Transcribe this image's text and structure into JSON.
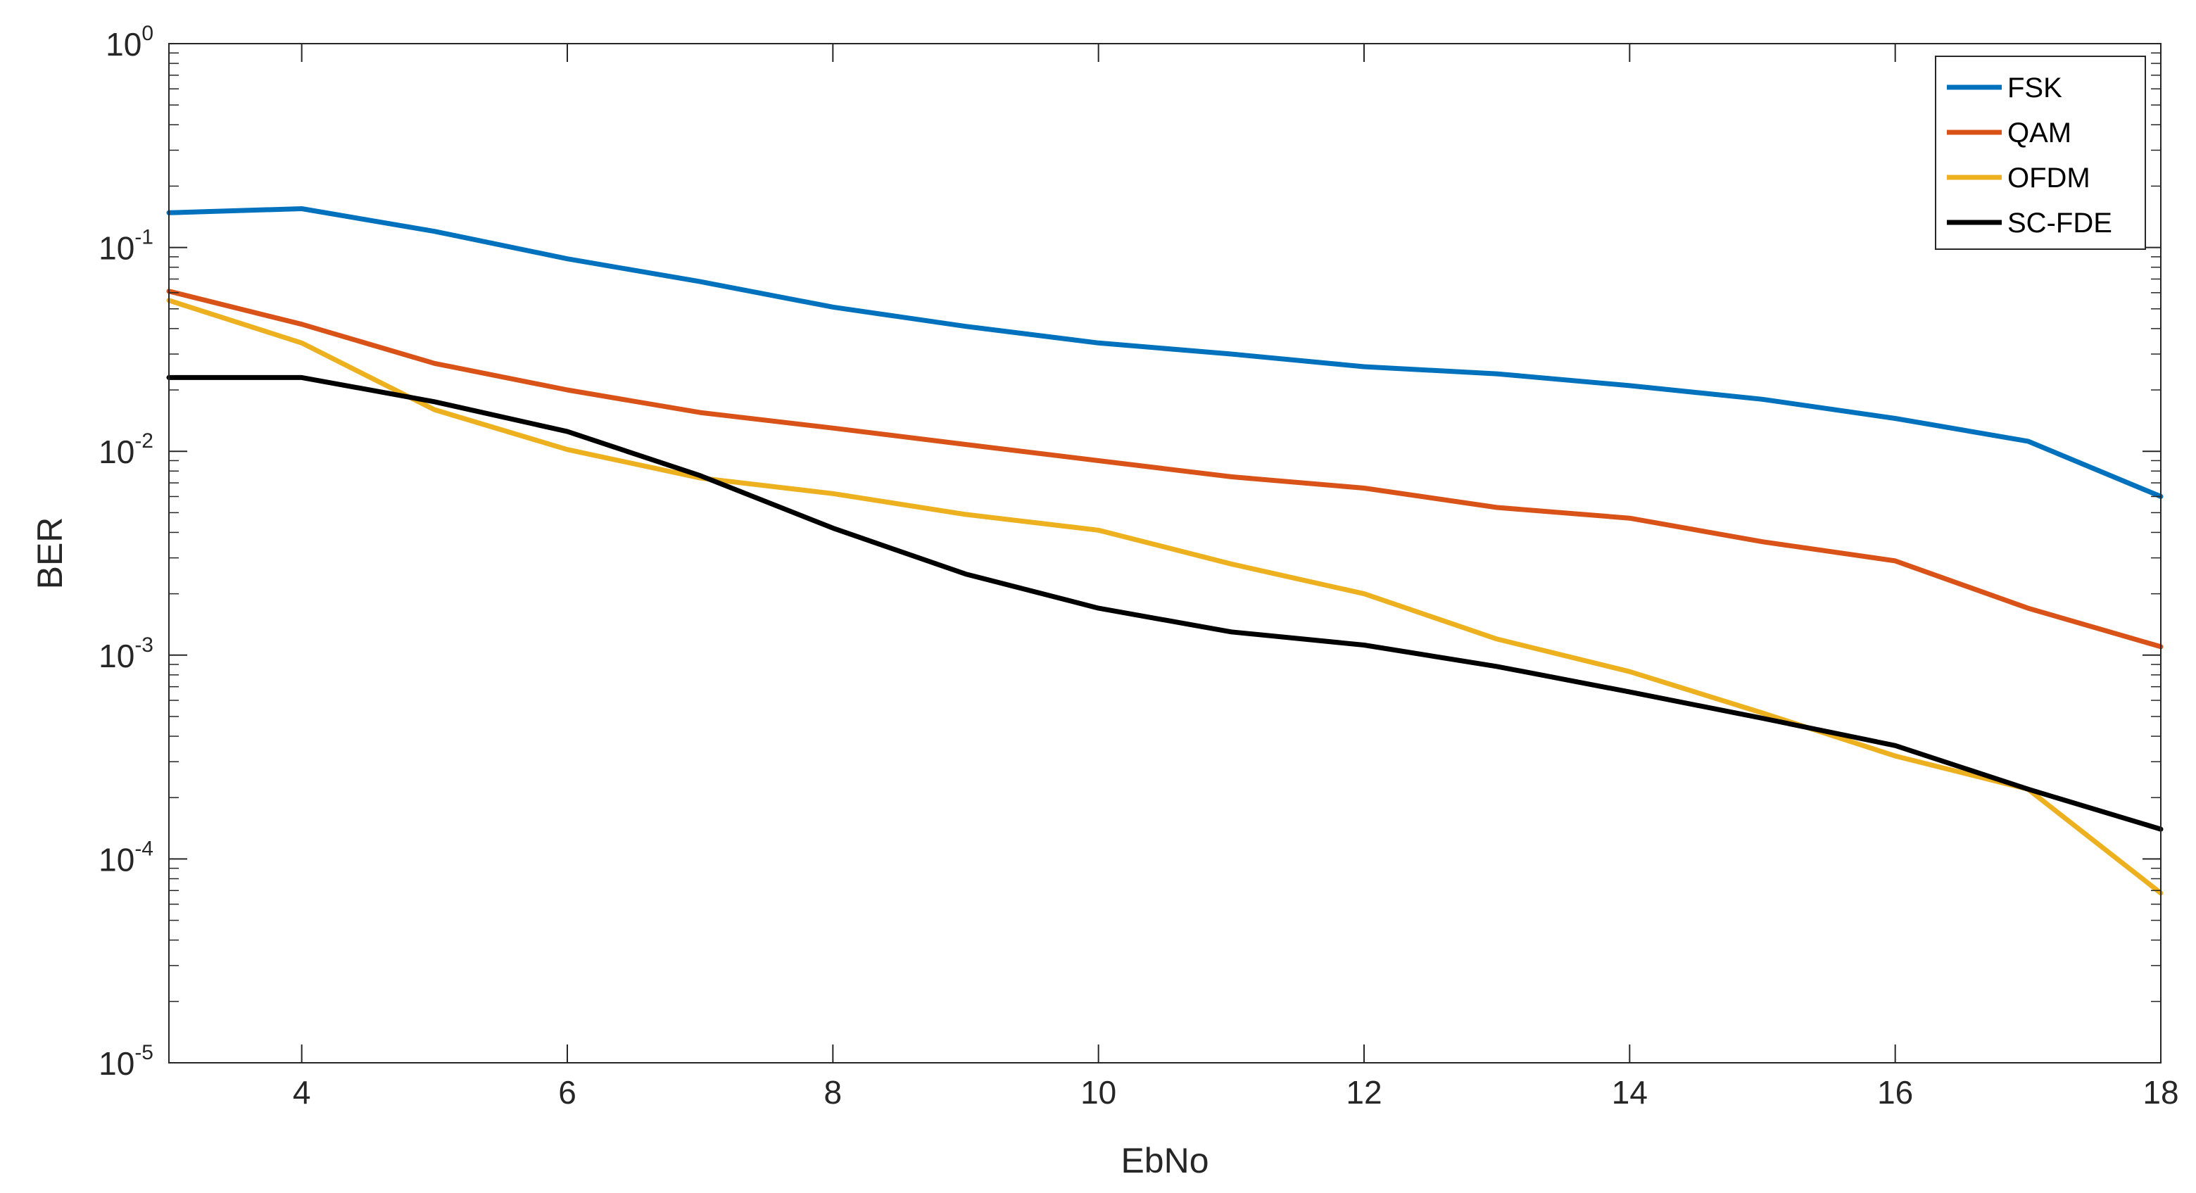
{
  "chart_data": {
    "type": "line",
    "title": "",
    "xlabel": "EbNo",
    "ylabel": "BER",
    "xlim": [
      3,
      18
    ],
    "ylim": [
      1e-05,
      1
    ],
    "yscale": "log",
    "grid": false,
    "legend": "top-right",
    "x_ticks": [
      4,
      6,
      8,
      10,
      12,
      14,
      16,
      18
    ],
    "y_ticks": [
      {
        "base": "10",
        "exp": "-5",
        "value": 1e-05
      },
      {
        "base": "10",
        "exp": "-4",
        "value": 0.0001
      },
      {
        "base": "10",
        "exp": "-3",
        "value": 0.001
      },
      {
        "base": "10",
        "exp": "-2",
        "value": 0.01
      },
      {
        "base": "10",
        "exp": "-1",
        "value": 0.1
      },
      {
        "base": "10",
        "exp": "0",
        "value": 1
      }
    ],
    "x": [
      3,
      4,
      5,
      6,
      7,
      8,
      9,
      10,
      11,
      12,
      13,
      14,
      15,
      16,
      17,
      18
    ],
    "series": [
      {
        "name": "FSK",
        "color": "#0072BD",
        "values": [
          0.148,
          0.155,
          0.12,
          0.088,
          0.068,
          0.051,
          0.041,
          0.034,
          0.03,
          0.026,
          0.024,
          0.021,
          0.018,
          0.0145,
          0.0112,
          0.006
        ]
      },
      {
        "name": "QAM",
        "color": "#D95319",
        "values": [
          0.061,
          0.042,
          0.027,
          0.02,
          0.0155,
          0.013,
          0.0108,
          0.009,
          0.0075,
          0.0066,
          0.0053,
          0.0047,
          0.0036,
          0.0029,
          0.0017,
          0.0011
        ]
      },
      {
        "name": "OFDM",
        "color": "#EDB120",
        "values": [
          0.055,
          0.034,
          0.016,
          0.0102,
          0.0074,
          0.0062,
          0.0049,
          0.0041,
          0.0028,
          0.002,
          0.0012,
          0.00083,
          0.00052,
          0.00032,
          0.00022,
          6.8e-05
        ]
      },
      {
        "name": "SC-FDE",
        "color": "#000000",
        "values": [
          0.023,
          0.023,
          0.0175,
          0.0125,
          0.0076,
          0.0042,
          0.0025,
          0.0017,
          0.0013,
          0.00112,
          0.00088,
          0.00066,
          0.00049,
          0.00036,
          0.00022,
          0.00014
        ]
      }
    ]
  }
}
